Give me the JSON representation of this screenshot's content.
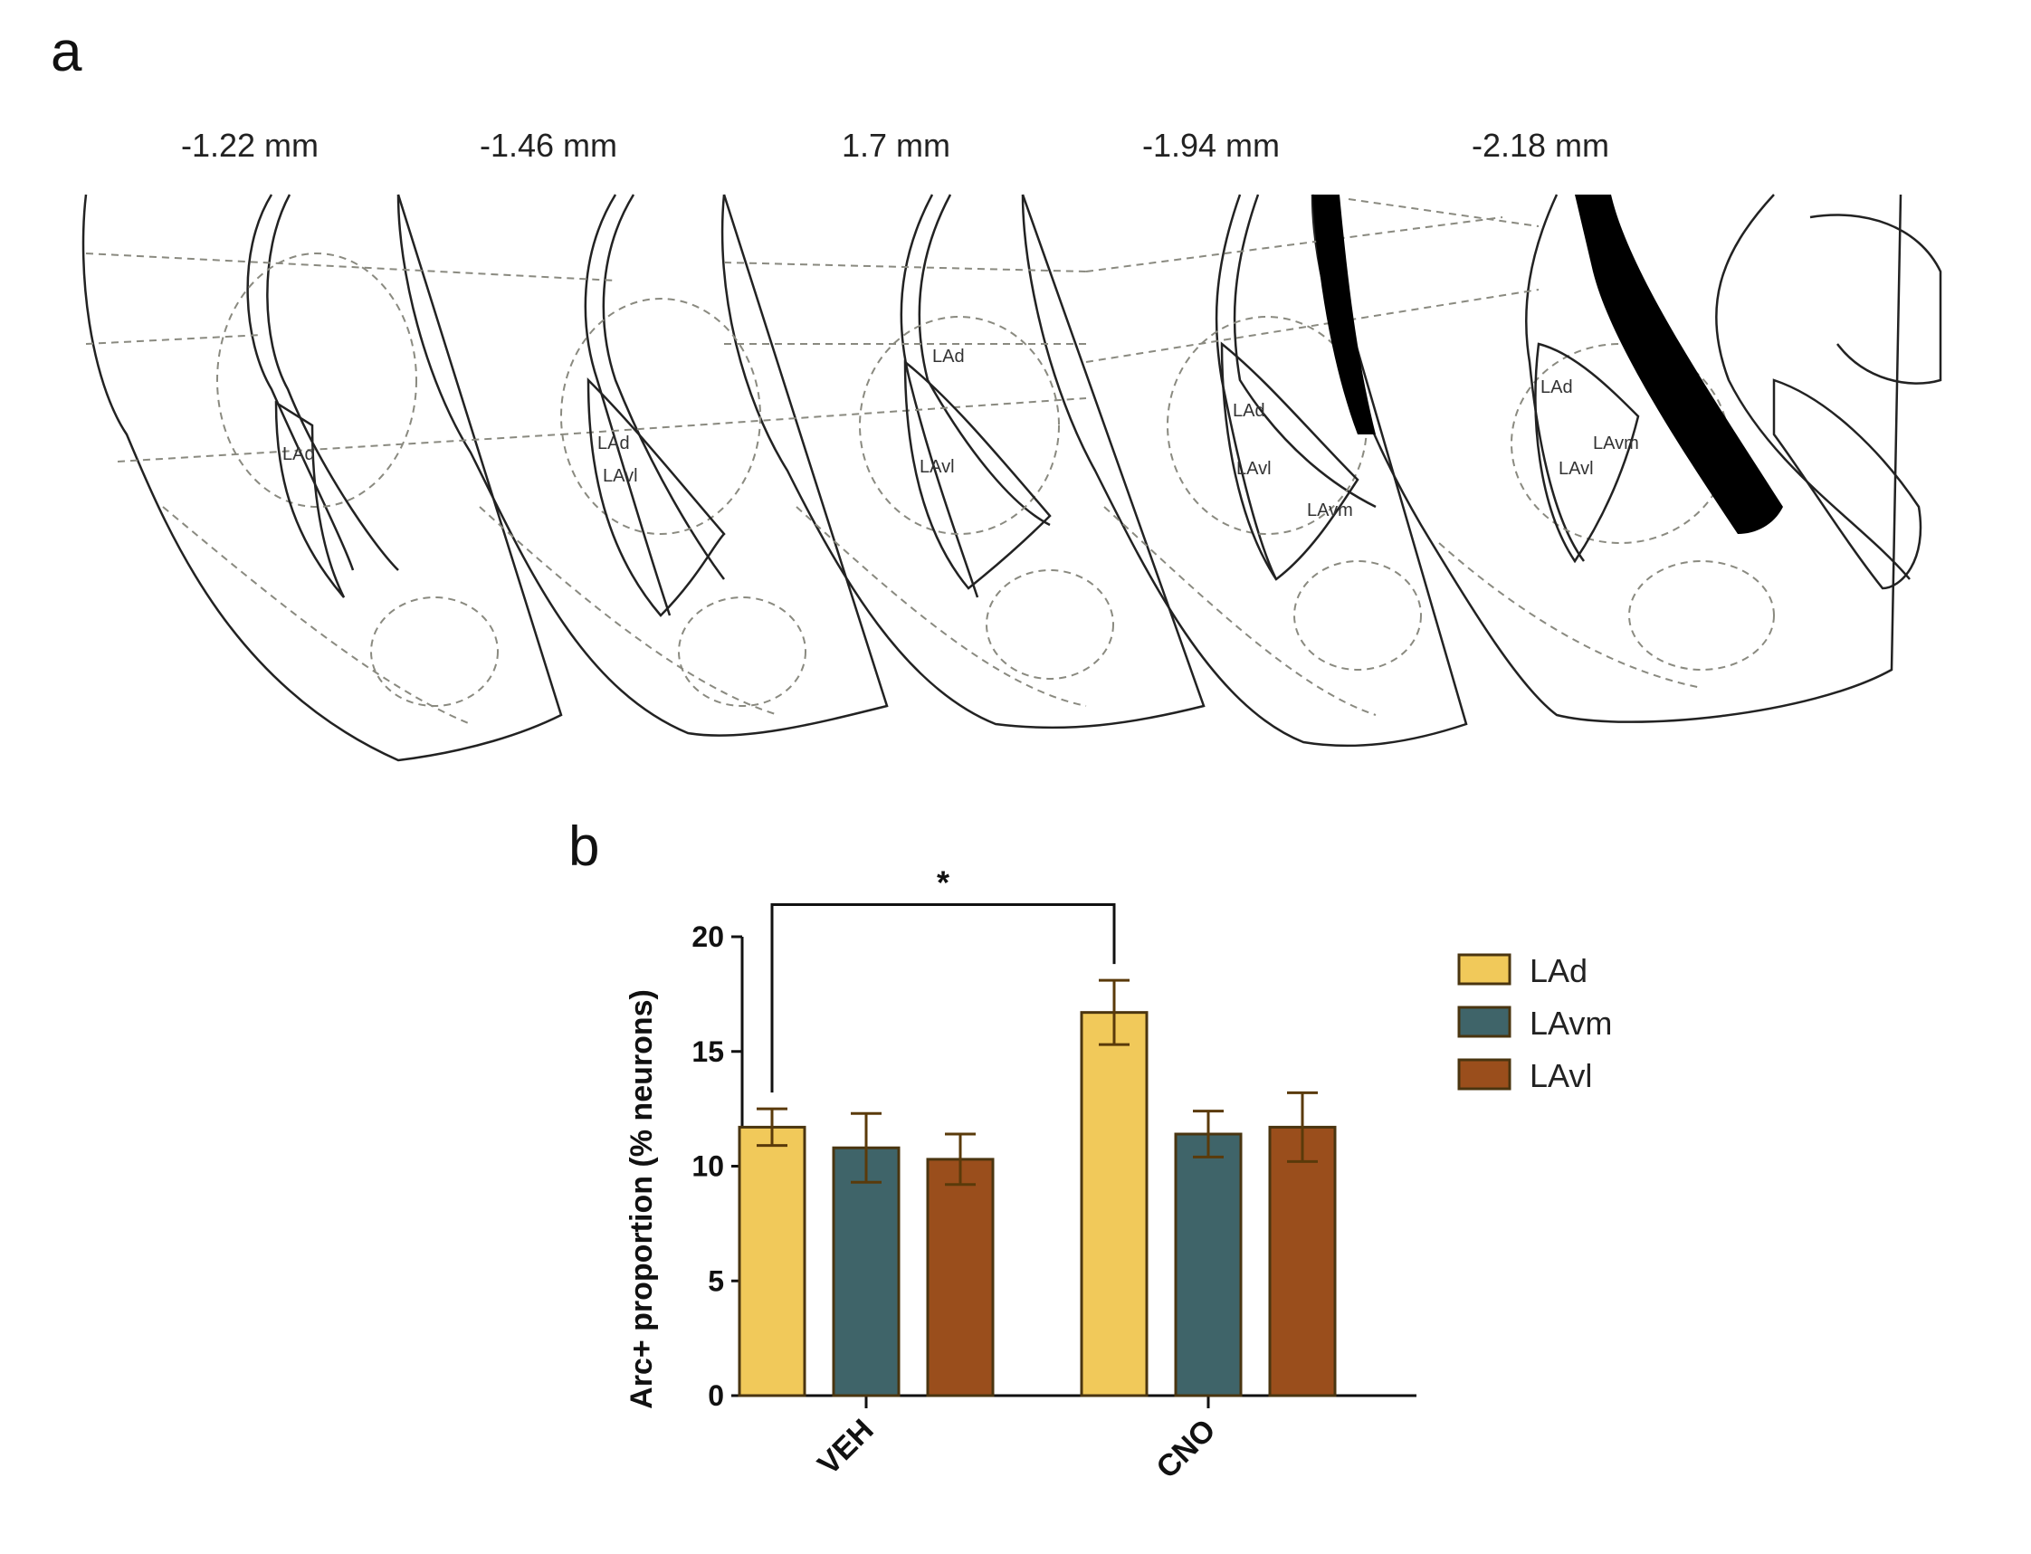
{
  "panel_a": {
    "letter": "a",
    "slices": [
      {
        "label": "-1.22 mm",
        "regions": [
          "LAd"
        ]
      },
      {
        "label": "-1.46 mm",
        "regions": [
          "LAd",
          "LAvl"
        ]
      },
      {
        "label": "1.7 mm",
        "regions": [
          "LAd",
          "LAvl"
        ]
      },
      {
        "label": "-1.94 mm",
        "regions": [
          "LAd",
          "LAvl",
          "LAvm"
        ]
      },
      {
        "label": "-2.18 mm",
        "regions": [
          "LAd",
          "LAvm",
          "LAvl"
        ]
      }
    ]
  },
  "panel_b": {
    "letter": "b"
  },
  "chart_data": {
    "type": "bar",
    "ylabel": "Arc+ proportion  (% neurons)",
    "xlabel": "",
    "ylim": [
      0,
      20
    ],
    "yticks": [
      0,
      5,
      10,
      15,
      20
    ],
    "categories": [
      "VEH",
      "CNO"
    ],
    "series": [
      {
        "name": "LAd",
        "color": "#F1C95A",
        "values": [
          11.7,
          16.7
        ],
        "errors": [
          0.8,
          1.4
        ]
      },
      {
        "name": "LAvm",
        "color": "#3F6469",
        "values": [
          10.8,
          11.4
        ],
        "errors": [
          1.5,
          1.0
        ]
      },
      {
        "name": "LAvl",
        "color": "#9A4E1C",
        "values": [
          10.3,
          11.7
        ],
        "errors": [
          1.1,
          1.5
        ]
      }
    ],
    "bar_edge_color": "#4a3510",
    "legend_position": "right",
    "significance": {
      "label": "*",
      "from": {
        "category": "VEH",
        "series": "LAd"
      },
      "to": {
        "category": "CNO",
        "series": "LAd"
      }
    },
    "grid": false
  }
}
